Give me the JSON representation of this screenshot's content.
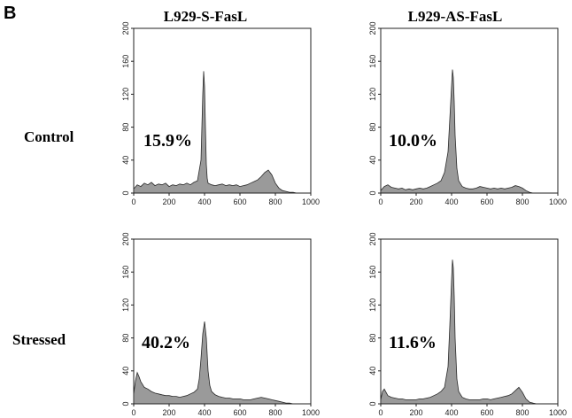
{
  "figure": {
    "panel_label": "B",
    "column_titles": [
      "L929-S-FasL",
      "L929-AS-FasL"
    ],
    "row_labels": [
      "Control",
      "Stressed"
    ]
  },
  "chart_data": [
    {
      "type": "area",
      "column": "L929-S-FasL",
      "row": "Control",
      "annotation": "15.9%",
      "xlim": [
        0,
        1000
      ],
      "ylim": [
        0,
        200
      ],
      "xticks": [
        0,
        200,
        400,
        600,
        800,
        1000
      ],
      "yticks": [
        0,
        40,
        80,
        120,
        160,
        200
      ],
      "x": [
        0,
        20,
        40,
        60,
        80,
        100,
        120,
        140,
        160,
        180,
        200,
        220,
        240,
        260,
        280,
        300,
        320,
        340,
        360,
        380,
        385,
        390,
        395,
        400,
        405,
        410,
        415,
        420,
        440,
        460,
        480,
        500,
        520,
        540,
        560,
        580,
        600,
        620,
        640,
        660,
        680,
        700,
        720,
        740,
        760,
        780,
        800,
        820,
        840,
        860,
        880,
        900,
        920,
        940,
        960,
        980,
        1000
      ],
      "y": [
        5,
        10,
        8,
        12,
        10,
        13,
        9,
        11,
        10,
        12,
        8,
        10,
        9,
        11,
        10,
        12,
        10,
        13,
        15,
        40,
        80,
        120,
        148,
        130,
        80,
        35,
        18,
        12,
        10,
        9,
        10,
        11,
        9,
        10,
        9,
        10,
        8,
        9,
        10,
        12,
        14,
        16,
        20,
        25,
        28,
        22,
        12,
        6,
        3,
        2,
        1,
        1,
        0,
        0,
        0,
        0,
        0
      ]
    },
    {
      "type": "area",
      "column": "L929-AS-FasL",
      "row": "Control",
      "annotation": "10.0%",
      "xlim": [
        0,
        1000
      ],
      "ylim": [
        0,
        200
      ],
      "xticks": [
        0,
        200,
        400,
        600,
        800,
        1000
      ],
      "yticks": [
        0,
        40,
        80,
        120,
        160,
        200
      ],
      "x": [
        0,
        20,
        40,
        60,
        80,
        100,
        120,
        140,
        160,
        180,
        200,
        220,
        240,
        260,
        280,
        300,
        320,
        340,
        360,
        380,
        390,
        400,
        405,
        410,
        415,
        420,
        430,
        440,
        460,
        480,
        500,
        520,
        540,
        560,
        580,
        600,
        620,
        640,
        660,
        680,
        700,
        720,
        740,
        760,
        780,
        800,
        820,
        840,
        860,
        880,
        900,
        920,
        940,
        960,
        980,
        1000
      ],
      "y": [
        3,
        8,
        10,
        7,
        6,
        5,
        6,
        4,
        5,
        4,
        5,
        6,
        5,
        6,
        8,
        10,
        12,
        15,
        25,
        50,
        90,
        130,
        150,
        140,
        110,
        70,
        30,
        15,
        8,
        6,
        5,
        5,
        6,
        8,
        7,
        6,
        5,
        6,
        5,
        6,
        5,
        6,
        7,
        9,
        8,
        6,
        3,
        1,
        0,
        0,
        0,
        0,
        0,
        0,
        0,
        0
      ]
    },
    {
      "type": "area",
      "column": "L929-S-FasL",
      "row": "Stressed",
      "annotation": "40.2%",
      "xlim": [
        0,
        1000
      ],
      "ylim": [
        0,
        200
      ],
      "xticks": [
        0,
        200,
        400,
        600,
        800,
        1000
      ],
      "yticks": [
        0,
        40,
        80,
        120,
        160,
        200
      ],
      "x": [
        0,
        10,
        20,
        30,
        40,
        60,
        80,
        100,
        120,
        140,
        160,
        180,
        200,
        220,
        240,
        260,
        280,
        300,
        320,
        340,
        360,
        370,
        380,
        390,
        400,
        410,
        420,
        430,
        440,
        460,
        480,
        500,
        520,
        540,
        560,
        580,
        600,
        620,
        640,
        660,
        680,
        700,
        720,
        740,
        760,
        780,
        800,
        820,
        840,
        860,
        880,
        900,
        920,
        940,
        960,
        980,
        1000
      ],
      "y": [
        12,
        28,
        38,
        33,
        27,
        20,
        18,
        15,
        13,
        12,
        11,
        10,
        10,
        9,
        9,
        8,
        9,
        10,
        12,
        14,
        18,
        30,
        55,
        85,
        100,
        80,
        40,
        22,
        15,
        11,
        9,
        8,
        7,
        7,
        6,
        6,
        6,
        5,
        5,
        5,
        6,
        7,
        8,
        7,
        6,
        5,
        4,
        3,
        2,
        1,
        1,
        0,
        0,
        0,
        0,
        0,
        0
      ]
    },
    {
      "type": "area",
      "column": "L929-AS-FasL",
      "row": "Stressed",
      "annotation": "11.6%",
      "xlim": [
        0,
        1000
      ],
      "ylim": [
        0,
        200
      ],
      "xticks": [
        0,
        200,
        400,
        600,
        800,
        1000
      ],
      "yticks": [
        0,
        40,
        80,
        120,
        160,
        200
      ],
      "x": [
        0,
        10,
        20,
        40,
        60,
        80,
        100,
        120,
        140,
        160,
        180,
        200,
        220,
        240,
        260,
        280,
        300,
        320,
        340,
        360,
        380,
        390,
        400,
        405,
        410,
        415,
        420,
        430,
        440,
        460,
        480,
        500,
        520,
        540,
        560,
        580,
        600,
        620,
        640,
        660,
        680,
        700,
        720,
        740,
        760,
        780,
        800,
        820,
        840,
        860,
        880,
        900,
        920,
        940,
        960,
        980,
        1000
      ],
      "y": [
        5,
        15,
        18,
        10,
        8,
        7,
        6,
        6,
        5,
        5,
        5,
        5,
        6,
        6,
        7,
        8,
        10,
        12,
        15,
        20,
        45,
        95,
        150,
        175,
        165,
        130,
        80,
        30,
        15,
        8,
        6,
        5,
        5,
        5,
        5,
        6,
        6,
        5,
        6,
        7,
        8,
        9,
        10,
        12,
        16,
        20,
        14,
        6,
        2,
        1,
        0,
        0,
        0,
        0,
        0,
        0,
        0
      ]
    }
  ]
}
